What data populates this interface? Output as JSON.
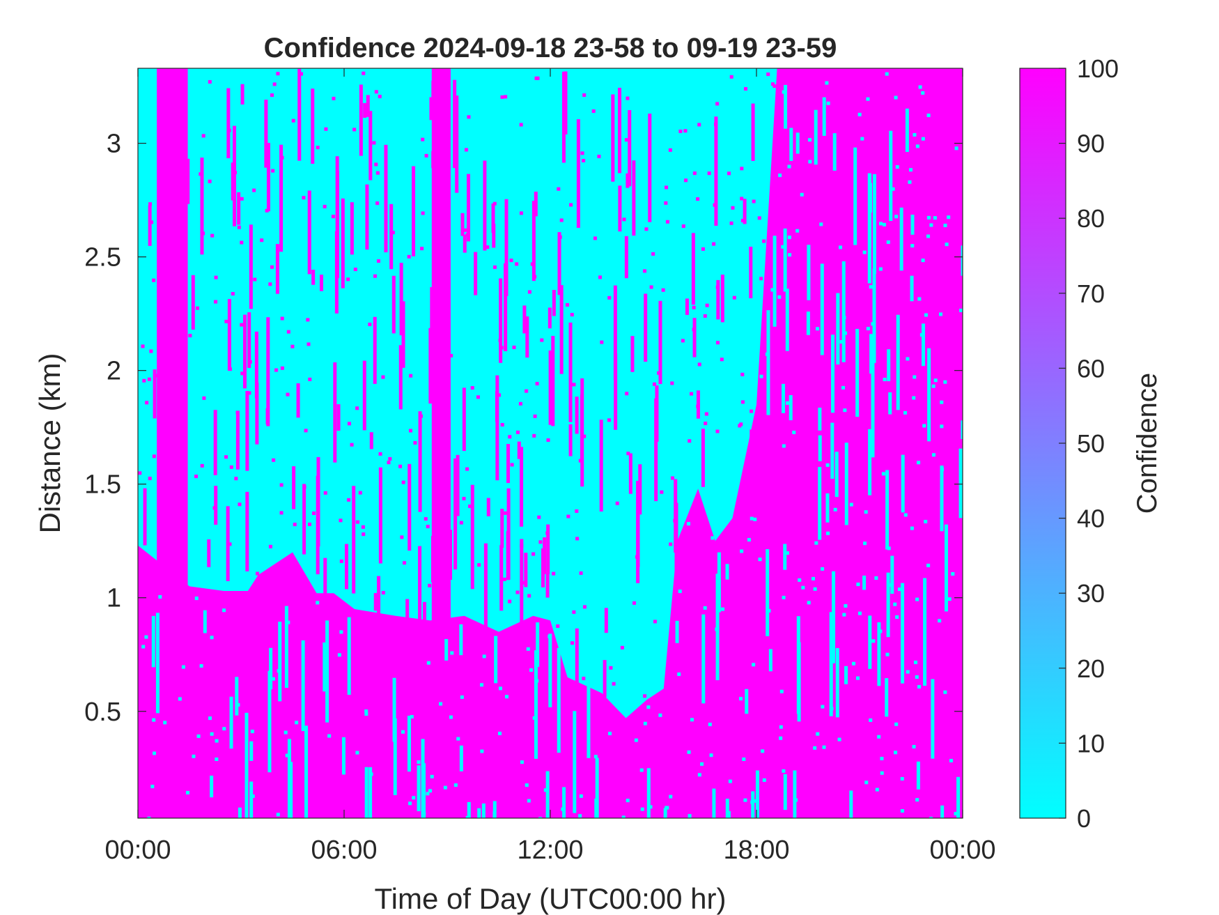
{
  "chart_data": {
    "type": "heatmap",
    "title": "Confidence 2024-09-18 23-58 to 09-19 23-59",
    "xlabel": "Time of Day (UTC00:00 hr)",
    "ylabel": "Distance (km)",
    "colorbar_label": "Confidence",
    "x_unit": "hours",
    "xlim": [
      0,
      24
    ],
    "ylim": [
      0.03,
      3.33
    ],
    "clim": [
      0,
      100
    ],
    "x_ticks": [
      {
        "value": 0,
        "label": "00:00"
      },
      {
        "value": 6,
        "label": "06:00"
      },
      {
        "value": 12,
        "label": "12:00"
      },
      {
        "value": 18,
        "label": "18:00"
      },
      {
        "value": 24,
        "label": "00:00"
      }
    ],
    "y_ticks": [
      {
        "value": 0.5,
        "label": "0.5"
      },
      {
        "value": 1,
        "label": "1"
      },
      {
        "value": 1.5,
        "label": "1.5"
      },
      {
        "value": 2,
        "label": "2"
      },
      {
        "value": 2.5,
        "label": "2.5"
      },
      {
        "value": 3,
        "label": "3"
      }
    ],
    "colorbar_ticks": [
      {
        "value": 0,
        "label": "0"
      },
      {
        "value": 10,
        "label": "10"
      },
      {
        "value": 20,
        "label": "20"
      },
      {
        "value": 30,
        "label": "30"
      },
      {
        "value": 40,
        "label": "40"
      },
      {
        "value": 50,
        "label": "50"
      },
      {
        "value": 60,
        "label": "60"
      },
      {
        "value": 70,
        "label": "70"
      },
      {
        "value": 80,
        "label": "80"
      },
      {
        "value": 90,
        "label": "90"
      },
      {
        "value": 100,
        "label": "100"
      }
    ],
    "colormap": {
      "low": "#00ffff",
      "high": "#ff00ff"
    },
    "pattern_note": "High confidence (100) below a boundary layer near 1 km for most of the day, rising to fill the full column after ~18:00; low confidence (0) above it. Cells are approximate.",
    "high_confidence_columns": [
      {
        "x_start": 0.55,
        "x_end": 1.45
      },
      {
        "x_start": 8.55,
        "x_end": 9.1
      },
      {
        "x_start": 19.4,
        "x_end": 21.0
      },
      {
        "x_start": 21.4,
        "x_end": 22.3
      },
      {
        "x_start": 23.1,
        "x_end": 24.0
      }
    ],
    "boundary_height_km": [
      {
        "x": 0.0,
        "y": 1.23
      },
      {
        "x": 1.5,
        "y": 1.05
      },
      {
        "x": 2.5,
        "y": 1.03
      },
      {
        "x": 3.2,
        "y": 1.03
      },
      {
        "x": 3.5,
        "y": 1.1
      },
      {
        "x": 4.5,
        "y": 1.2
      },
      {
        "x": 5.2,
        "y": 1.02
      },
      {
        "x": 5.7,
        "y": 1.02
      },
      {
        "x": 6.3,
        "y": 0.95
      },
      {
        "x": 7.5,
        "y": 0.92
      },
      {
        "x": 8.5,
        "y": 0.9
      },
      {
        "x": 9.5,
        "y": 0.92
      },
      {
        "x": 10.5,
        "y": 0.85
      },
      {
        "x": 11.5,
        "y": 0.92
      },
      {
        "x": 12.0,
        "y": 0.9
      },
      {
        "x": 12.5,
        "y": 0.65
      },
      {
        "x": 13.5,
        "y": 0.58
      },
      {
        "x": 14.2,
        "y": 0.47
      },
      {
        "x": 14.8,
        "y": 0.55
      },
      {
        "x": 15.3,
        "y": 0.6
      },
      {
        "x": 15.7,
        "y": 1.25
      },
      {
        "x": 16.3,
        "y": 1.48
      },
      {
        "x": 16.8,
        "y": 1.25
      },
      {
        "x": 17.3,
        "y": 1.35
      },
      {
        "x": 18.0,
        "y": 1.85
      },
      {
        "x": 18.6,
        "y": 3.33
      },
      {
        "x": 24.0,
        "y": 3.33
      }
    ]
  }
}
